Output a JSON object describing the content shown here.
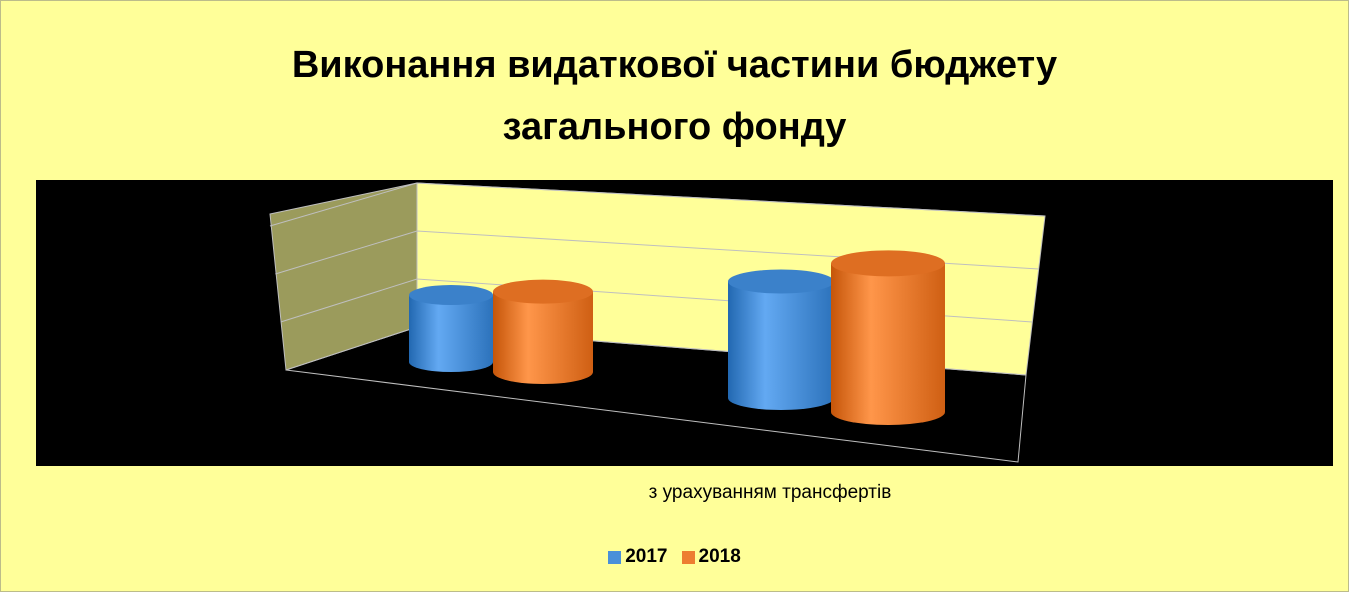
{
  "chart_data": {
    "type": "bar",
    "style": "3d-cylinder",
    "title": "Виконання видаткової частини бюджету загального фонду",
    "title_lines": [
      "Виконання видаткової частини бюджету",
      "загального фонду"
    ],
    "categories": [
      "",
      "з урахуванням трансфертів"
    ],
    "series": [
      {
        "name": "2017",
        "color": "#4a90d9",
        "values": [
          1.0,
          1.45
        ]
      },
      {
        "name": "2018",
        "color": "#ed7d31",
        "values": [
          1.2,
          1.85
        ]
      }
    ],
    "ylim": [
      0,
      2.0
    ],
    "grid": true,
    "legend": "bottom",
    "background_color": "#ffff99",
    "plot_background_color": "#000000"
  }
}
